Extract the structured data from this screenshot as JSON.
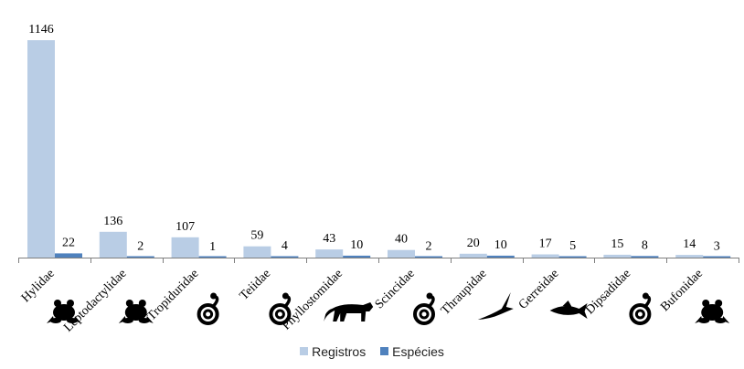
{
  "chart_data": {
    "type": "bar",
    "categories": [
      "Hylidae",
      "Leptodactylidae",
      "Tropiduridae",
      "Teiidae",
      "Phyllostomidae",
      "Scincidae",
      "Thraupidae",
      "Gerreidae",
      "Dipsadidae",
      "Bufonidae"
    ],
    "series": [
      {
        "name": "Registros",
        "values": [
          1146,
          136,
          107,
          59,
          43,
          40,
          20,
          17,
          15,
          14
        ],
        "color": "#b9cde5"
      },
      {
        "name": "Espécies",
        "values": [
          22,
          2,
          1,
          4,
          10,
          2,
          10,
          5,
          8,
          3
        ],
        "color": "#4f81bd"
      }
    ],
    "data_labels": [
      [
        "1146",
        "136",
        "107",
        "59",
        "43",
        "40",
        "20",
        "17",
        "15",
        "14"
      ],
      [
        "22",
        "2",
        "1",
        "4",
        "10",
        "2",
        "10",
        "5",
        "8",
        "3"
      ]
    ],
    "icons": [
      "frog-icon",
      "frog-icon",
      "snake-icon",
      "snake-icon",
      "jaguar-icon",
      "snake-icon",
      "bird-icon",
      "fish-icon",
      "snake-icon",
      "frog-icon"
    ],
    "ylim": [
      0,
      1146
    ],
    "grid": false,
    "legend_position": "bottom-center"
  },
  "legend": [
    "Registros",
    "Espécies"
  ]
}
